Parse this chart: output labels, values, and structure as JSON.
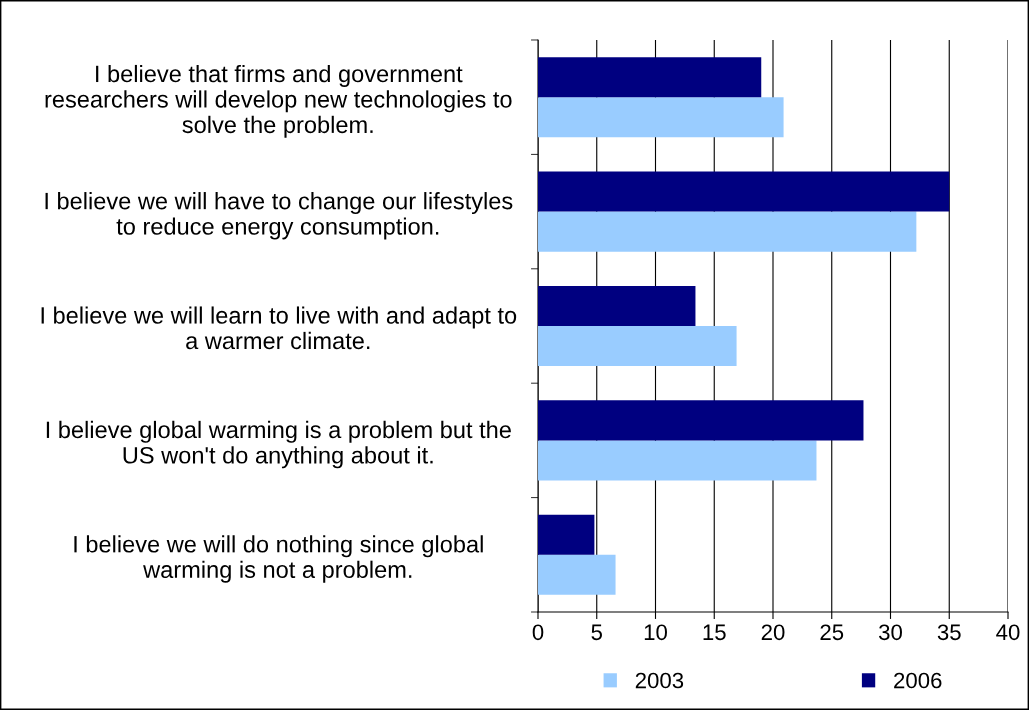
{
  "chart_data": {
    "type": "bar",
    "orientation": "horizontal",
    "categories": [
      "I believe that firms and government\nresearchers will develop new technologies to\nsolve the problem.",
      "I believe we will have to change our lifestyles\nto reduce energy consumption.",
      "I believe we will learn to live with and adapt to\na warmer climate.",
      "I believe global warming is a problem but the\nUS won't do anything about it.",
      "I believe we will do nothing since global\nwarming is not a problem."
    ],
    "series": [
      {
        "name": "2003",
        "color": "#99ccff",
        "values": [
          20.9,
          32.2,
          16.9,
          23.7,
          6.6
        ]
      },
      {
        "name": "2006",
        "color": "#000080",
        "values": [
          19.0,
          35.0,
          13.4,
          27.7,
          4.8
        ]
      }
    ],
    "xlim": [
      0,
      40
    ],
    "xticks": [
      0,
      5,
      10,
      15,
      20,
      25,
      30,
      35,
      40
    ],
    "grid": "x",
    "legend": "bottom"
  }
}
